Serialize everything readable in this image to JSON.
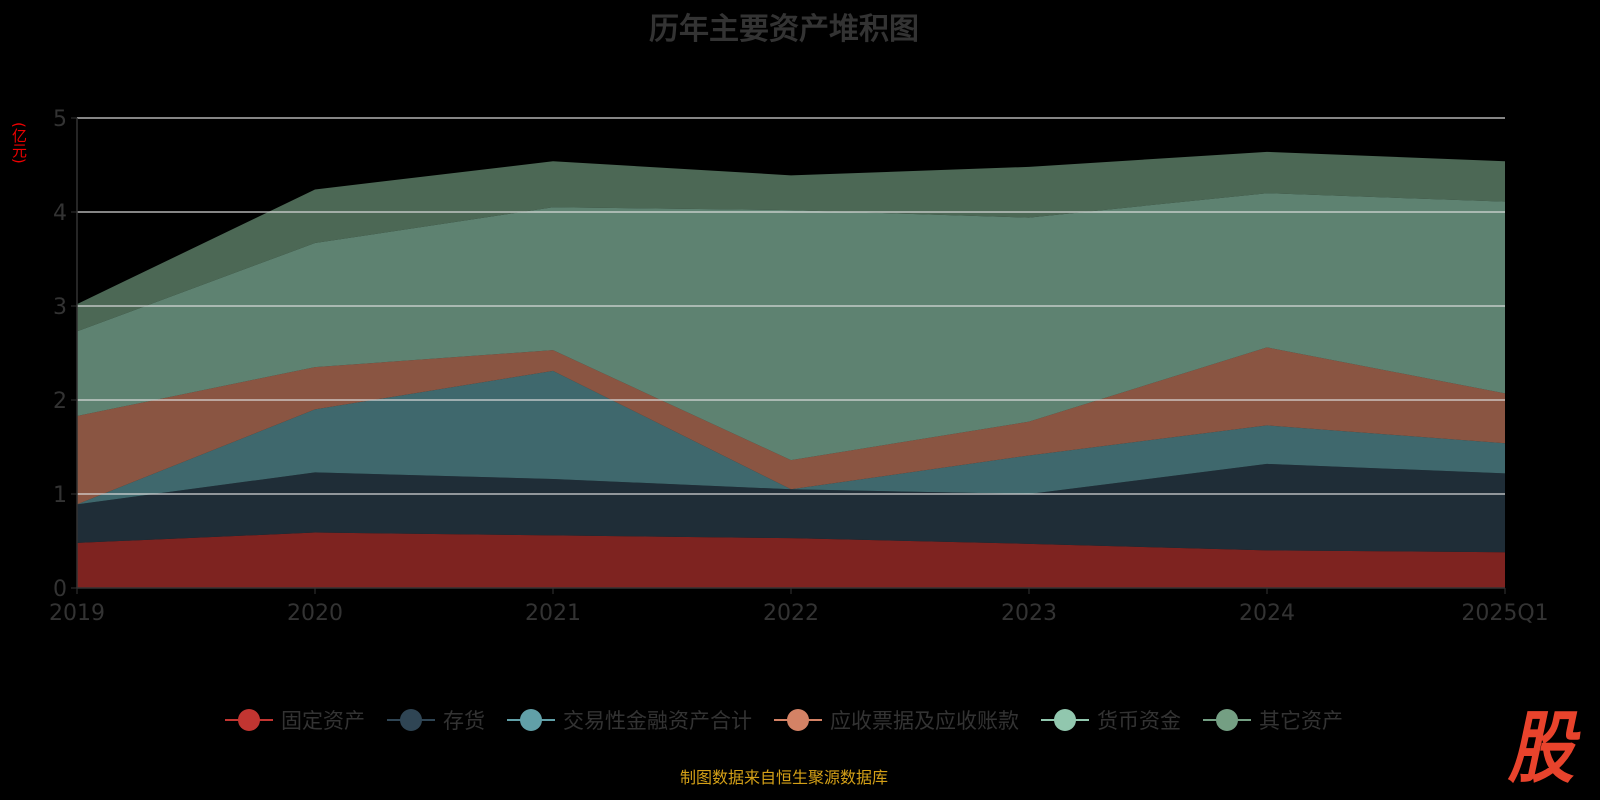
{
  "chart_data": {
    "type": "area",
    "stacked": true,
    "title": "历年主要资产堆积图",
    "ylabel": "(亿元)",
    "xlabel": "",
    "categories": [
      "2019",
      "2020",
      "2021",
      "2022",
      "2023",
      "2024",
      "2025Q1"
    ],
    "ylim": [
      0,
      5
    ],
    "yticks": [
      "0",
      "1",
      "2",
      "3",
      "4",
      "5"
    ],
    "grid": true,
    "legend_position": "bottom",
    "series": [
      {
        "name": "固定资产",
        "color": "#c23531",
        "values": [
          0.48,
          0.59,
          0.56,
          0.53,
          0.47,
          0.4,
          0.38
        ]
      },
      {
        "name": "存货",
        "color": "#2f4554",
        "values": [
          0.41,
          0.64,
          0.6,
          0.52,
          0.53,
          0.92,
          0.84
        ]
      },
      {
        "name": "交易性金融资产合计",
        "color": "#61a0a8",
        "values": [
          0,
          0.67,
          1.15,
          0,
          0.41,
          0.41,
          0.32
        ]
      },
      {
        "name": "应收票据及应收账款",
        "color": "#d48265",
        "values": [
          0.94,
          0.45,
          0.22,
          0.31,
          0.36,
          0.83,
          0.53
        ]
      },
      {
        "name": "货币资金",
        "color": "#91c7ae",
        "values": [
          0.9,
          1.32,
          1.52,
          2.66,
          2.17,
          1.64,
          2.04
        ]
      },
      {
        "name": "其它资产",
        "color": "#749f83",
        "values": [
          0.29,
          0.57,
          0.49,
          0.37,
          0.54,
          0.44,
          0.43
        ]
      }
    ]
  },
  "source": "制图数据来自恒生聚源数据库",
  "logo_text": "股"
}
